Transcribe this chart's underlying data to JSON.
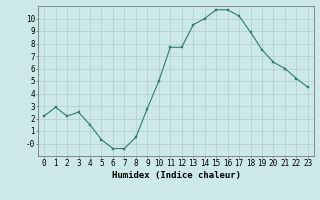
{
  "x": [
    0,
    1,
    2,
    3,
    4,
    5,
    6,
    7,
    8,
    9,
    10,
    11,
    12,
    13,
    14,
    15,
    16,
    17,
    18,
    19,
    20,
    21,
    22,
    23
  ],
  "y": [
    2.2,
    2.9,
    2.2,
    2.5,
    1.5,
    0.3,
    -0.4,
    -0.4,
    0.5,
    2.8,
    5.0,
    7.7,
    7.7,
    9.5,
    10.0,
    10.7,
    10.7,
    10.2,
    8.9,
    7.5,
    6.5,
    6.0,
    5.2,
    4.5
  ],
  "line_color": "#2e7d6e",
  "marker": "s",
  "marker_size": 2,
  "bg_color": "#cce8e8",
  "grid_color": "#b0cccc",
  "xlabel": "Humidex (Indice chaleur)",
  "xlim": [
    -0.5,
    23.5
  ],
  "ylim": [
    -1.0,
    11.0
  ],
  "xtick_labels": [
    "0",
    "1",
    "2",
    "3",
    "4",
    "5",
    "6",
    "7",
    "8",
    "9",
    "10",
    "11",
    "12",
    "13",
    "14",
    "15",
    "16",
    "17",
    "18",
    "19",
    "20",
    "21",
    "22",
    "23"
  ],
  "ytick_vals": [
    0,
    1,
    2,
    3,
    4,
    5,
    6,
    7,
    8,
    9,
    10
  ],
  "ytick_labels": [
    "-0",
    "1",
    "2",
    "3",
    "4",
    "5",
    "6",
    "7",
    "8",
    "9",
    "10"
  ],
  "label_fontsize": 6.5,
  "tick_fontsize": 5.5
}
